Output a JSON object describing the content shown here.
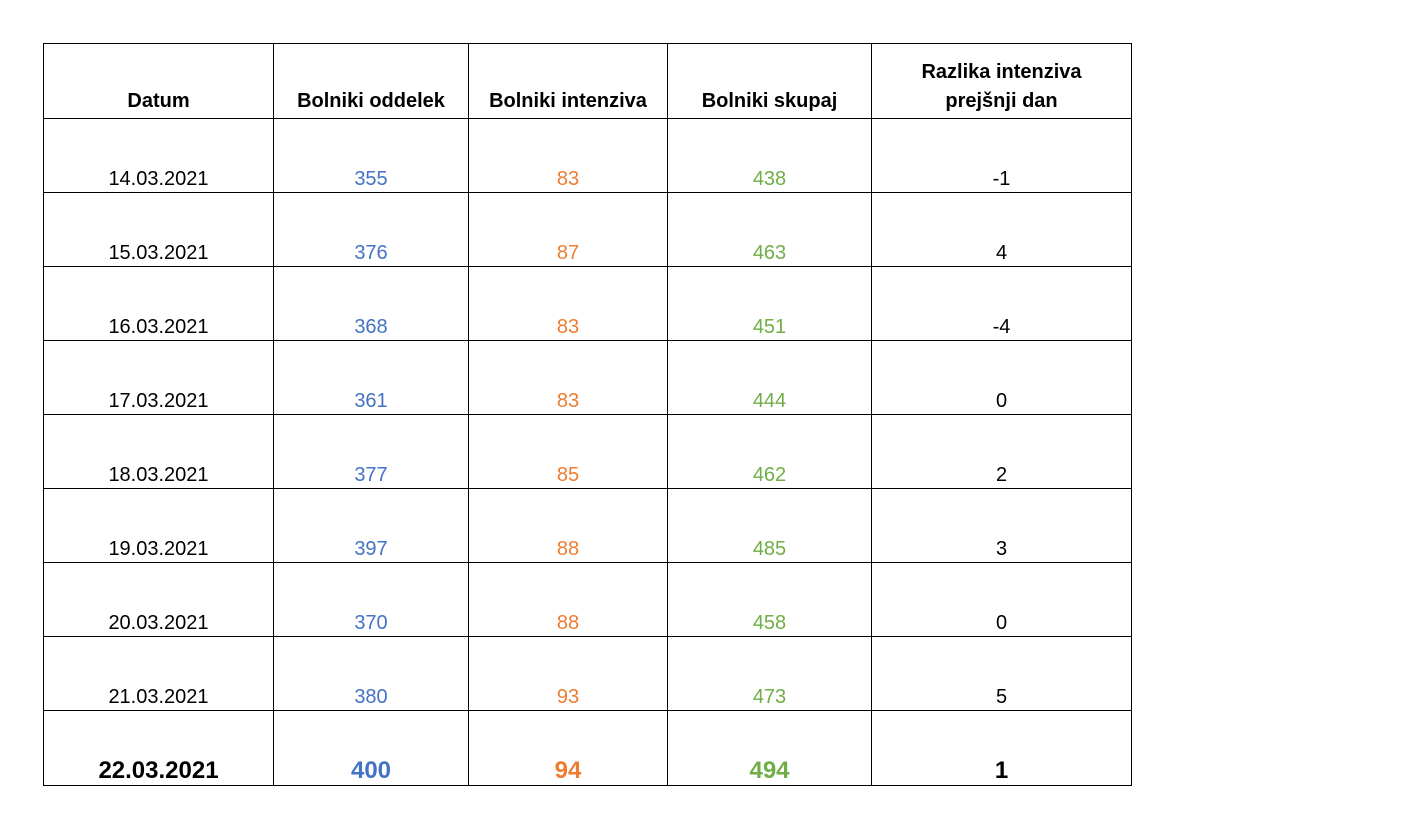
{
  "table": {
    "headers": [
      "Datum",
      "Bolniki oddelek",
      "Bolniki intenziva",
      "Bolniki skupaj",
      "Razlika intenziva prejšnji dan"
    ],
    "rows": [
      {
        "datum": "14.03.2021",
        "oddelek": "355",
        "intenziva": "83",
        "skupaj": "438",
        "razlika": "-1"
      },
      {
        "datum": "15.03.2021",
        "oddelek": "376",
        "intenziva": "87",
        "skupaj": "463",
        "razlika": "4"
      },
      {
        "datum": "16.03.2021",
        "oddelek": "368",
        "intenziva": "83",
        "skupaj": "451",
        "razlika": "-4"
      },
      {
        "datum": "17.03.2021",
        "oddelek": "361",
        "intenziva": "83",
        "skupaj": "444",
        "razlika": "0"
      },
      {
        "datum": "18.03.2021",
        "oddelek": "377",
        "intenziva": "85",
        "skupaj": "462",
        "razlika": "2"
      },
      {
        "datum": "19.03.2021",
        "oddelek": "397",
        "intenziva": "88",
        "skupaj": "485",
        "razlika": "3"
      },
      {
        "datum": "20.03.2021",
        "oddelek": "370",
        "intenziva": "88",
        "skupaj": "458",
        "razlika": "0"
      },
      {
        "datum": "21.03.2021",
        "oddelek": "380",
        "intenziva": "93",
        "skupaj": "473",
        "razlika": "5"
      },
      {
        "datum": "22.03.2021",
        "oddelek": "400",
        "intenziva": "94",
        "skupaj": "494",
        "razlika": "1"
      }
    ]
  },
  "colors": {
    "oddelek": "#4472c4",
    "intenziva": "#ed7d31",
    "skupaj": "#70ad47",
    "text": "#000000"
  }
}
